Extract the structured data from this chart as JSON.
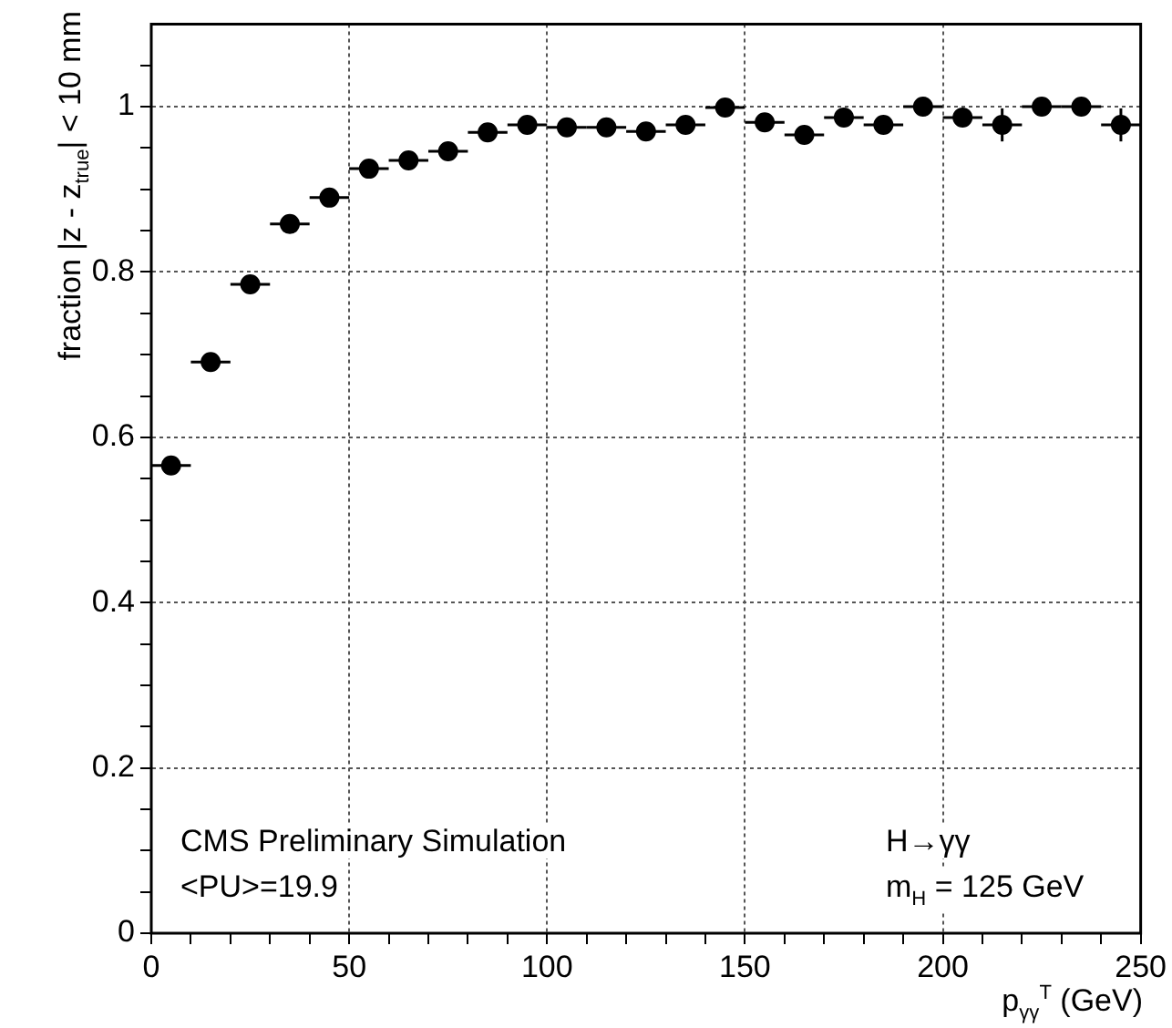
{
  "chart_data": {
    "type": "scatter",
    "xlabel": "p$_{γγ}$$^{T}$ (GeV)",
    "ylabel": "fraction |z - z$_{true}$| < 10 mm",
    "x": [
      5,
      15,
      25,
      35,
      45,
      55,
      65,
      75,
      85,
      95,
      105,
      115,
      125,
      135,
      145,
      155,
      165,
      175,
      185,
      195,
      205,
      215,
      225,
      235,
      245
    ],
    "series": [
      {
        "color": "#000000",
        "values": [
          0.566,
          0.691,
          0.785,
          0.858,
          0.89,
          0.925,
          0.935,
          0.946,
          0.969,
          0.978,
          0.975,
          0.975,
          0.97,
          0.978,
          0.999,
          0.981,
          0.966,
          0.987,
          0.978,
          1.0,
          0.987,
          0.978,
          1.0,
          1.0,
          0.978
        ],
        "errors": [
          null,
          null,
          null,
          null,
          null,
          null,
          null,
          null,
          null,
          null,
          null,
          null,
          null,
          null,
          null,
          null,
          0.01,
          0.008,
          0.008,
          null,
          0.008,
          0.02,
          null,
          null,
          0.02
        ],
        "xerrors": [
          5,
          5,
          5,
          5,
          5,
          5,
          5,
          5,
          5,
          5,
          5,
          5,
          5,
          5,
          5,
          5,
          5,
          5,
          5,
          5,
          5,
          5,
          5,
          5,
          5
        ]
      }
    ],
    "xlim": [
      0,
      250
    ],
    "xticks": [
      0,
      {
        "value": 10,
        "label": null
      },
      {
        "value": 20,
        "label": null
      },
      {
        "value": 30,
        "label": null
      },
      {
        "value": 40,
        "label": null
      },
      50,
      {
        "value": 60,
        "label": null
      },
      {
        "value": 70,
        "label": null
      },
      {
        "value": 80,
        "label": null
      },
      {
        "value": 90,
        "label": null
      },
      100,
      {
        "value": 110,
        "label": null
      },
      {
        "value": 120,
        "label": null
      },
      {
        "value": 130,
        "label": null
      },
      {
        "value": 140,
        "label": null
      },
      150,
      {
        "value": 160,
        "label": null
      },
      {
        "value": 170,
        "label": null
      },
      {
        "value": 180,
        "label": null
      },
      {
        "value": 190,
        "label": null
      },
      200,
      {
        "value": 210,
        "label": null
      },
      {
        "value": 220,
        "label": null
      },
      {
        "value": 230,
        "label": null
      },
      {
        "value": 240,
        "label": null
      },
      250
    ],
    "ylim": [
      0,
      1.1
    ],
    "yticks": [
      0,
      {
        "value": 0.05,
        "label": null
      },
      {
        "value": 0.1,
        "label": null
      },
      {
        "value": 0.15,
        "label": null
      },
      0.2,
      {
        "value": 0.25,
        "label": null
      },
      {
        "value": 0.3,
        "label": null
      },
      {
        "value": 0.35,
        "label": null
      },
      0.4,
      {
        "value": 0.45,
        "label": null
      },
      {
        "value": 0.5,
        "label": null
      },
      {
        "value": 0.55,
        "label": null
      },
      0.6,
      {
        "value": 0.65,
        "label": null
      },
      {
        "value": 0.7,
        "label": null
      },
      {
        "value": 0.75,
        "label": null
      },
      0.8,
      {
        "value": 0.85,
        "label": null
      },
      {
        "value": 0.9,
        "label": null
      },
      {
        "value": 0.95,
        "label": null
      },
      1,
      {
        "value": 1.05,
        "label": null
      }
    ],
    "grid": true,
    "legend": false,
    "marker": "circle",
    "annotations": [
      "CMS Preliminary Simulation",
      "<PU>=19.9",
      "H→γγ",
      "m$_{H}$ = 125 GeV"
    ]
  }
}
